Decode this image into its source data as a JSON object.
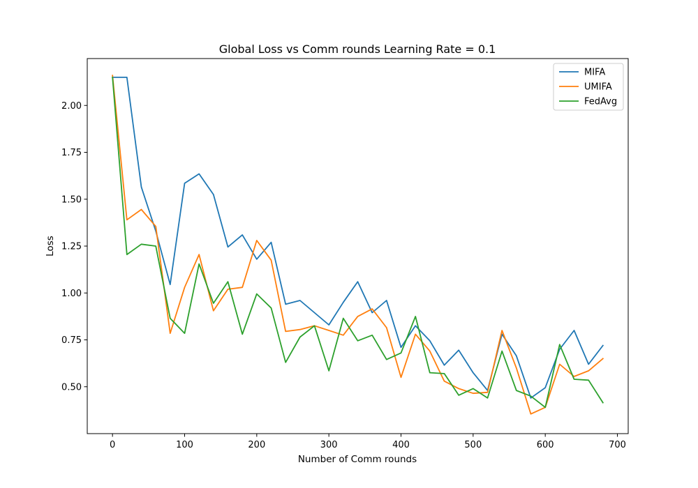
{
  "chart_data": {
    "type": "line",
    "title": "Global Loss vs Comm rounds Learning Rate = 0.1",
    "xlabel": "Number of Comm rounds",
    "ylabel": "Loss",
    "xlim": [
      -35,
      715
    ],
    "ylim": [
      0.25,
      2.25
    ],
    "x_ticks": [
      0,
      100,
      200,
      300,
      400,
      500,
      600,
      700
    ],
    "x_tick_labels": [
      "0",
      "100",
      "200",
      "300",
      "400",
      "500",
      "600",
      "700"
    ],
    "y_ticks": [
      0.5,
      0.75,
      1.0,
      1.25,
      1.5,
      1.75,
      2.0
    ],
    "y_tick_labels": [
      "0.50",
      "0.75",
      "1.00",
      "1.25",
      "1.50",
      "1.75",
      "2.00"
    ],
    "grid": false,
    "legend_position": "upper right",
    "x": [
      0,
      20,
      40,
      60,
      80,
      100,
      120,
      140,
      160,
      180,
      200,
      220,
      240,
      260,
      280,
      300,
      320,
      340,
      360,
      380,
      400,
      420,
      440,
      460,
      480,
      500,
      520,
      540,
      560,
      580,
      600,
      620,
      640,
      660,
      680
    ],
    "series": [
      {
        "name": "MIFA",
        "color": "#1f77b4",
        "values": [
          2.15,
          2.15,
          1.565,
          1.33,
          1.045,
          1.585,
          1.635,
          1.525,
          1.245,
          1.31,
          1.18,
          1.27,
          0.94,
          0.96,
          0.895,
          0.83,
          0.95,
          1.06,
          0.895,
          0.96,
          0.71,
          0.825,
          0.745,
          0.615,
          0.695,
          0.575,
          0.48,
          0.78,
          0.665,
          0.44,
          0.495,
          0.7,
          0.8,
          0.62,
          0.72
        ]
      },
      {
        "name": "UMIFA",
        "color": "#ff7f0e",
        "values": [
          2.16,
          1.39,
          1.445,
          1.355,
          0.785,
          1.03,
          1.205,
          0.905,
          1.02,
          1.03,
          1.28,
          1.175,
          0.795,
          0.805,
          0.825,
          0.8,
          0.775,
          0.875,
          0.915,
          0.815,
          0.55,
          0.78,
          0.69,
          0.53,
          0.49,
          0.465,
          0.47,
          0.8,
          0.6,
          0.355,
          0.39,
          0.62,
          0.555,
          0.585,
          0.65
        ]
      },
      {
        "name": "FedAvg",
        "color": "#2ca02c",
        "values": [
          2.15,
          1.205,
          1.26,
          1.25,
          0.865,
          0.785,
          1.155,
          0.945,
          1.06,
          0.78,
          0.995,
          0.92,
          0.63,
          0.765,
          0.825,
          0.585,
          0.865,
          0.745,
          0.775,
          0.645,
          0.68,
          0.875,
          0.575,
          0.57,
          0.455,
          0.49,
          0.44,
          0.69,
          0.48,
          0.45,
          0.39,
          0.725,
          0.54,
          0.535,
          0.415
        ]
      }
    ]
  }
}
